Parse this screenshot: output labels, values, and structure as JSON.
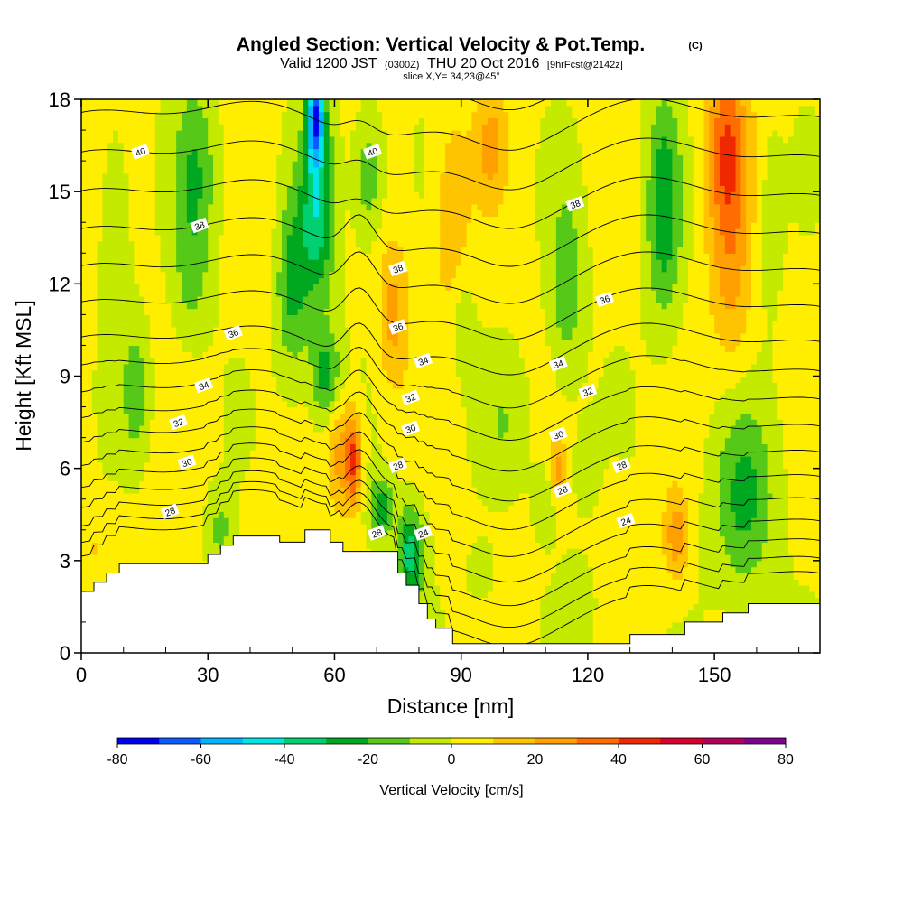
{
  "chart_data": {
    "type": "heatmap",
    "title": "Angled Section: Vertical Velocity & Pot.Temp.",
    "title_unit": "(C)",
    "subtitle": {
      "part1": "Valid 1200 JST",
      "part2": "(0300Z)",
      "part3": "THU 20 Oct 2016",
      "part4": "[9hrFcst@2142z]"
    },
    "slice_label": "slice X,Y= 34,23@45°",
    "xlabel": "Distance [nm]",
    "ylabel": "Height [Kft MSL]",
    "xlim": [
      0,
      175
    ],
    "ylim": [
      0,
      18
    ],
    "x_ticks": [
      0,
      30,
      60,
      90,
      120,
      150
    ],
    "y_ticks": [
      0,
      3,
      6,
      9,
      12,
      15,
      18
    ],
    "colorbar": {
      "label": "Vertical Velocity [cm/s]",
      "range": [
        -80,
        80
      ],
      "tick_values": [
        -80,
        -60,
        -40,
        -20,
        0,
        20,
        40,
        60,
        80
      ],
      "colors": [
        "#0000f0",
        "#0a5aff",
        "#00b4ff",
        "#00e6e6",
        "#00d070",
        "#00a820",
        "#56c818",
        "#c4ea00",
        "#ffee00",
        "#ffc400",
        "#ffa000",
        "#ff6c00",
        "#f02800",
        "#d80030",
        "#b0005a",
        "#800090"
      ]
    },
    "terrain_kft": [
      [
        0,
        2.0
      ],
      [
        3,
        2.0
      ],
      [
        3,
        2.3
      ],
      [
        6,
        2.3
      ],
      [
        6,
        2.6
      ],
      [
        9,
        2.6
      ],
      [
        9,
        2.9
      ],
      [
        30,
        2.9
      ],
      [
        30,
        3.2
      ],
      [
        33,
        3.2
      ],
      [
        33,
        3.5
      ],
      [
        36,
        3.5
      ],
      [
        36,
        3.8
      ],
      [
        47,
        3.8
      ],
      [
        47,
        3.6
      ],
      [
        53,
        3.6
      ],
      [
        53,
        4.0
      ],
      [
        59,
        4.0
      ],
      [
        59,
        3.6
      ],
      [
        62,
        3.6
      ],
      [
        62,
        3.3
      ],
      [
        75,
        3.3
      ],
      [
        75,
        2.6
      ],
      [
        77,
        2.6
      ],
      [
        77,
        2.2
      ],
      [
        80,
        2.2
      ],
      [
        80,
        1.6
      ],
      [
        82,
        1.6
      ],
      [
        82,
        1.1
      ],
      [
        84,
        1.1
      ],
      [
        84,
        0.8
      ],
      [
        88,
        0.8
      ],
      [
        88,
        0.3
      ],
      [
        130,
        0.3
      ],
      [
        130,
        0.6
      ],
      [
        143,
        0.6
      ],
      [
        143,
        1.0
      ],
      [
        152,
        1.0
      ],
      [
        152,
        1.3
      ],
      [
        158,
        1.3
      ],
      [
        158,
        1.6
      ],
      [
        175,
        1.6
      ]
    ],
    "contour_labels": [
      {
        "value": "40",
        "x": 14,
        "y": 16.3
      },
      {
        "value": "40",
        "x": 69,
        "y": 16.3
      },
      {
        "value": "38",
        "x": 28,
        "y": 13.9
      },
      {
        "value": "38",
        "x": 75,
        "y": 12.5
      },
      {
        "value": "38",
        "x": 117,
        "y": 14.6
      },
      {
        "value": "36",
        "x": 36,
        "y": 10.4
      },
      {
        "value": "36",
        "x": 75,
        "y": 10.6
      },
      {
        "value": "36",
        "x": 124,
        "y": 11.5
      },
      {
        "value": "34",
        "x": 29,
        "y": 8.7
      },
      {
        "value": "34",
        "x": 81,
        "y": 9.5
      },
      {
        "value": "34",
        "x": 113,
        "y": 9.4
      },
      {
        "value": "32",
        "x": 23,
        "y": 7.5
      },
      {
        "value": "32",
        "x": 78,
        "y": 8.3
      },
      {
        "value": "32",
        "x": 120,
        "y": 8.5
      },
      {
        "value": "30",
        "x": 25,
        "y": 6.2
      },
      {
        "value": "30",
        "x": 78,
        "y": 7.3
      },
      {
        "value": "30",
        "x": 113,
        "y": 7.1
      },
      {
        "value": "28",
        "x": 21,
        "y": 4.6
      },
      {
        "value": "28",
        "x": 75,
        "y": 6.1
      },
      {
        "value": "28",
        "x": 128,
        "y": 6.1
      },
      {
        "value": "28",
        "x": 70,
        "y": 3.9
      },
      {
        "value": "28",
        "x": 114,
        "y": 5.3
      },
      {
        "value": "24",
        "x": 81,
        "y": 3.9
      },
      {
        "value": "24",
        "x": 129,
        "y": 4.3
      }
    ],
    "contour_levels": [
      22,
      23,
      24,
      25,
      26,
      27,
      28,
      29,
      30,
      31,
      32,
      33,
      34,
      35,
      36,
      37,
      38,
      39,
      40,
      41
    ],
    "velocity_field": [
      {
        "x": 8,
        "y": 14,
        "sx": 4,
        "sy": 4,
        "w": -8
      },
      {
        "x": 13,
        "y": 8.5,
        "sx": 3,
        "sy": 2,
        "w": -20
      },
      {
        "x": 27,
        "y": 15.5,
        "sx": 5,
        "sy": 3,
        "w": -22
      },
      {
        "x": 26,
        "y": 12,
        "sx": 4,
        "sy": 2,
        "w": -12
      },
      {
        "x": 33,
        "y": 4,
        "sx": 3,
        "sy": 1.2,
        "w": -16
      },
      {
        "x": 42,
        "y": 14,
        "sx": 5,
        "sy": 3,
        "w": 6
      },
      {
        "x": 50,
        "y": 12,
        "sx": 4,
        "sy": 3,
        "w": -25
      },
      {
        "x": 56,
        "y": 14.5,
        "sx": 4,
        "sy": 3,
        "w": -38
      },
      {
        "x": 55.5,
        "y": 17.5,
        "sx": 2,
        "sy": 1.5,
        "w": -60
      },
      {
        "x": 58,
        "y": 9,
        "sx": 3.5,
        "sy": 1.5,
        "w": -28
      },
      {
        "x": 61,
        "y": 6.5,
        "sx": 3,
        "sy": 2,
        "w": 20
      },
      {
        "x": 64.5,
        "y": 6.3,
        "sx": 2,
        "sy": 1.5,
        "w": 40
      },
      {
        "x": 68,
        "y": 15.5,
        "sx": 3.5,
        "sy": 2,
        "w": -20
      },
      {
        "x": 74,
        "y": 11,
        "sx": 3.5,
        "sy": 2.5,
        "w": 22
      },
      {
        "x": 71,
        "y": 4.7,
        "sx": 3,
        "sy": 1,
        "w": -28
      },
      {
        "x": 78,
        "y": 3.2,
        "sx": 3,
        "sy": 1.5,
        "w": -38
      },
      {
        "x": 88,
        "y": 14,
        "sx": 4,
        "sy": 3.5,
        "w": 18
      },
      {
        "x": 90,
        "y": 11,
        "sx": 3,
        "sy": 2,
        "w": -12
      },
      {
        "x": 97,
        "y": 16.5,
        "sx": 4,
        "sy": 2,
        "w": 20
      },
      {
        "x": 100,
        "y": 7.5,
        "sx": 6,
        "sy": 2,
        "w": -10
      },
      {
        "x": 110,
        "y": 5,
        "sx": 3,
        "sy": 1.2,
        "w": -10
      },
      {
        "x": 115,
        "y": 12,
        "sx": 4,
        "sy": 3,
        "w": -20
      },
      {
        "x": 113,
        "y": 6,
        "sx": 2,
        "sy": 1,
        "w": 22
      },
      {
        "x": 121,
        "y": 6,
        "sx": 5,
        "sy": 1.5,
        "w": -8
      },
      {
        "x": 125,
        "y": 5,
        "sx": 3,
        "sy": 1.5,
        "w": 8
      },
      {
        "x": 138,
        "y": 14.5,
        "sx": 4,
        "sy": 3.5,
        "w": -30
      },
      {
        "x": 141,
        "y": 3.8,
        "sx": 3,
        "sy": 1.5,
        "w": 25
      },
      {
        "x": 153,
        "y": 16.3,
        "sx": 5,
        "sy": 3,
        "w": 38
      },
      {
        "x": 154,
        "y": 12,
        "sx": 5,
        "sy": 3,
        "w": 18
      },
      {
        "x": 157,
        "y": 5,
        "sx": 7,
        "sy": 3,
        "w": -25
      },
      {
        "x": 163,
        "y": 14,
        "sx": 3,
        "sy": 3,
        "w": -8
      },
      {
        "x": 3,
        "y": 3.5,
        "sx": 2,
        "sy": 1,
        "w": 8
      },
      {
        "x": 118,
        "y": 1.5,
        "sx": 4,
        "sy": 1.5,
        "w": -8
      },
      {
        "x": 95,
        "y": 2.5,
        "sx": 4,
        "sy": 1.2,
        "w": -6
      }
    ]
  }
}
